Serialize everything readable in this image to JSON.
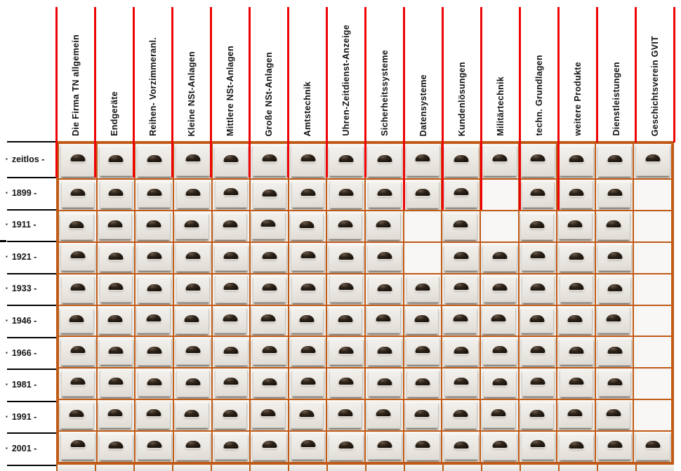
{
  "columns": [
    "Die Firma TN allgemein",
    "Endgeräte",
    "Reihen- Vorzimmeranl.",
    "Kleine NSt-Anlagen",
    "Mittlere NSt-Anlagen",
    "Große NSt-Anlagen",
    "Amtstechnik",
    "Uhren-Zeitdienst-Anzeige",
    "Sicherheitssysteme",
    "Datensysteme",
    "Kundenlösungen",
    "Militärtechnik",
    "techn. Grundlagen",
    "weitere Produkte",
    "Dienstleistungen",
    "Geschichtsverein GVIT"
  ],
  "row_bullet": "▪",
  "rows": [
    "zeitlos -",
    "1899 -",
    "1911 -",
    "1921 -",
    "1933 -",
    "1946 -",
    "1966 -",
    "1981 -",
    "1991 -",
    "2001 -"
  ],
  "matrix": [
    [
      1,
      1,
      1,
      1,
      1,
      1,
      1,
      1,
      1,
      1,
      1,
      1,
      1,
      1,
      1,
      1
    ],
    [
      1,
      1,
      1,
      1,
      1,
      1,
      1,
      1,
      1,
      1,
      1,
      0,
      1,
      1,
      1,
      0
    ],
    [
      1,
      1,
      1,
      1,
      1,
      1,
      1,
      1,
      1,
      0,
      1,
      0,
      1,
      1,
      1,
      0
    ],
    [
      1,
      1,
      1,
      1,
      1,
      1,
      1,
      1,
      1,
      0,
      1,
      1,
      1,
      1,
      1,
      0
    ],
    [
      1,
      1,
      1,
      1,
      1,
      1,
      1,
      1,
      1,
      1,
      1,
      1,
      1,
      1,
      1,
      0
    ],
    [
      1,
      1,
      1,
      1,
      1,
      1,
      1,
      1,
      1,
      1,
      1,
      1,
      1,
      1,
      1,
      0
    ],
    [
      1,
      1,
      1,
      1,
      1,
      1,
      1,
      1,
      1,
      1,
      1,
      1,
      1,
      1,
      1,
      0
    ],
    [
      1,
      1,
      1,
      1,
      1,
      1,
      1,
      1,
      1,
      1,
      1,
      1,
      1,
      1,
      1,
      0
    ],
    [
      1,
      1,
      1,
      1,
      1,
      1,
      1,
      1,
      1,
      1,
      1,
      1,
      1,
      1,
      1,
      0
    ],
    [
      1,
      1,
      1,
      1,
      1,
      1,
      1,
      1,
      1,
      1,
      1,
      1,
      1,
      1,
      1,
      1
    ]
  ],
  "colors": {
    "red_line": "#ee0404",
    "orange_border": "#c05a16",
    "row_line": "#000000",
    "drawer_face": "#eae7e2",
    "handle": "#2c2218",
    "empty_cell": "#f8f7f5"
  },
  "icons": {
    "drawer_handle": "drawer-handle-icon"
  }
}
